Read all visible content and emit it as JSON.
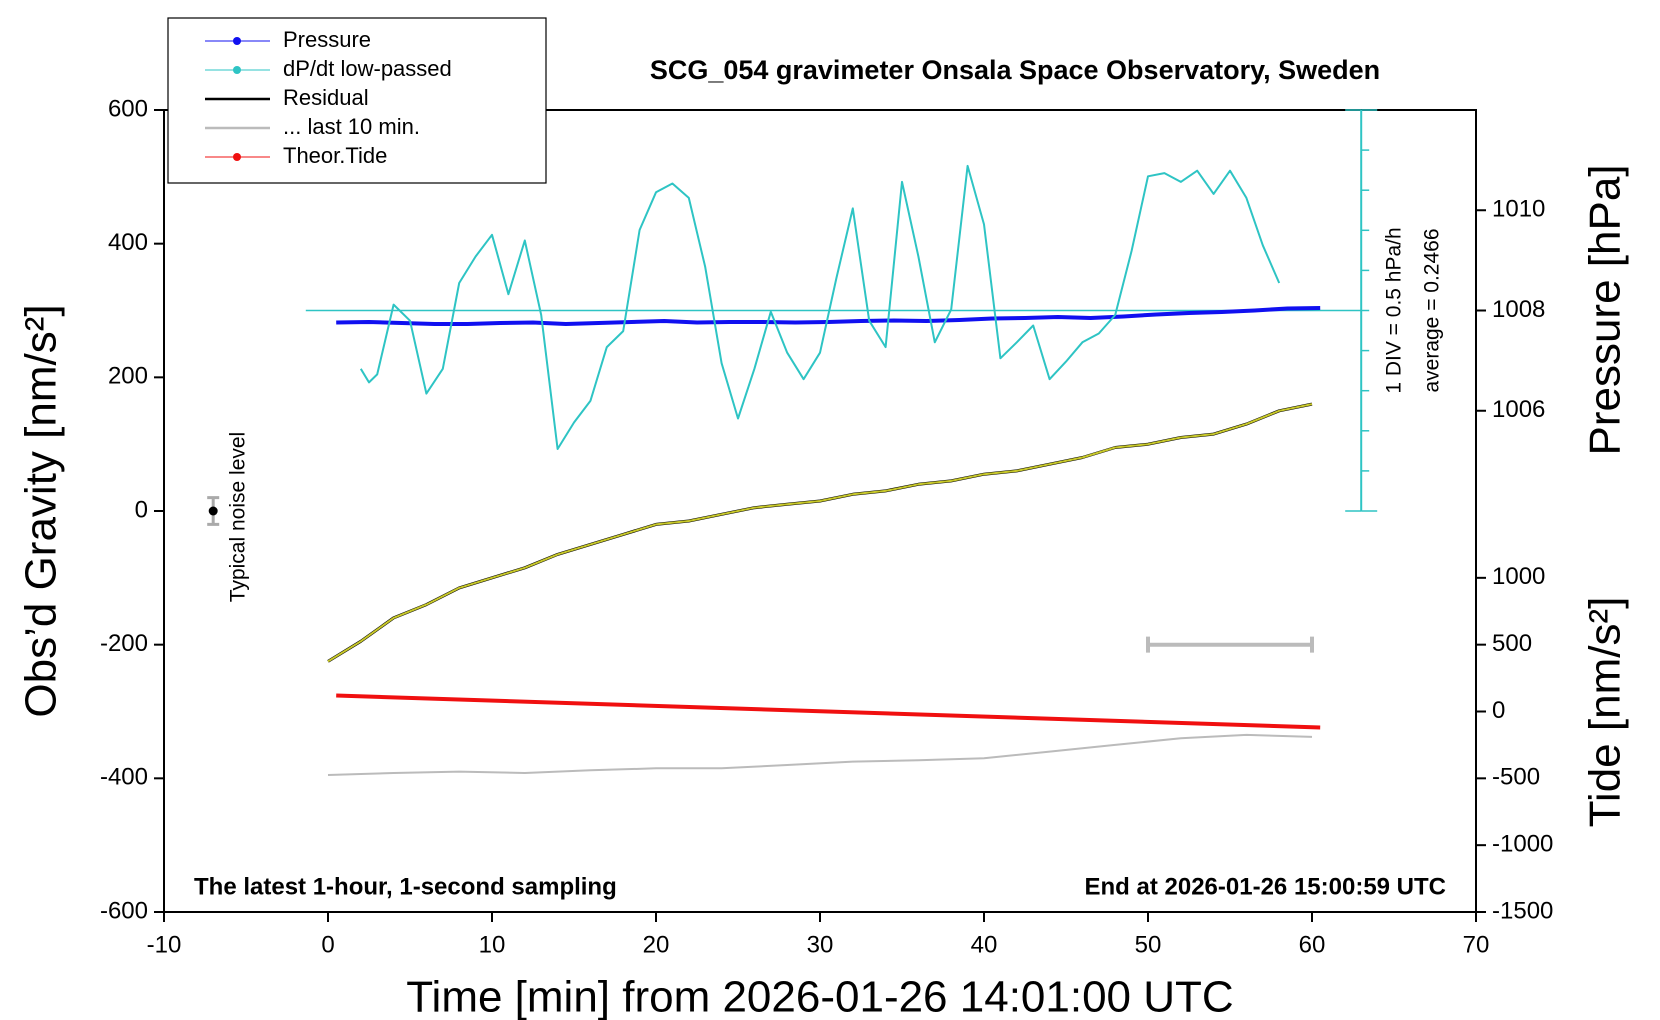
{
  "chart_data": {
    "type": "line",
    "title": "SCG_054 gravimeter Onsala Space Observatory, Sweden",
    "xlabel": "Time [min] from 2026-01-26 14:01:00 UTC",
    "ylabel": "Obs’d Gravity [nm/s²]",
    "note_left": "The latest 1-hour, 1-second sampling",
    "note_right": "End at 2026-01-26 15:00:59 UTC",
    "legend": "upper left",
    "xlim": [
      -10,
      70
    ],
    "xticks": [
      -10,
      0,
      10,
      20,
      30,
      40,
      50,
      60,
      70
    ],
    "ylim": [
      -600,
      600
    ],
    "yticks": [
      -600,
      -400,
      -200,
      0,
      200,
      400,
      600
    ],
    "pressure_axis": {
      "label": "Pressure [hPa]",
      "ylim": [
        1004,
        1012
      ],
      "yticks": [
        1006,
        1008,
        1010
      ]
    },
    "tide_axis": {
      "label": "Tide [nm/s²]",
      "ylim": [
        -1500,
        1500
      ],
      "yticks": [
        -1500,
        -1000,
        -500,
        0,
        500,
        1000
      ]
    },
    "dpdt_axis": {
      "x": 63,
      "color": "#2ec4c4",
      "div": {
        "value": 0.5,
        "label": "1 DIV = 0.5 hPa/h"
      },
      "average": {
        "value": 0.2466,
        "label": "average = 0.2466"
      }
    },
    "noise": {
      "label": "Typical noise level",
      "x": -7,
      "value": 0,
      "error": 20
    },
    "series": [
      {
        "name": "Pressure",
        "color": "#1010f0",
        "axis": "pressure",
        "marker": true,
        "width": 4,
        "x": [
          0.5,
          2.5,
          4.5,
          6.5,
          8.5,
          10.5,
          12.5,
          14.5,
          16.5,
          18.5,
          20.5,
          22.5,
          24.5,
          26.5,
          28.5,
          30.5,
          32.5,
          34.5,
          36.5,
          38.5,
          40.5,
          42.5,
          44.5,
          46.5,
          48.5,
          50.5,
          52.5,
          54.5,
          56.5,
          58.5,
          60.5
        ],
        "values": [
          1007.76,
          1007.77,
          1007.75,
          1007.73,
          1007.73,
          1007.75,
          1007.76,
          1007.73,
          1007.75,
          1007.77,
          1007.79,
          1007.76,
          1007.77,
          1007.77,
          1007.76,
          1007.77,
          1007.79,
          1007.8,
          1007.79,
          1007.81,
          1007.84,
          1007.85,
          1007.87,
          1007.85,
          1007.88,
          1007.92,
          1007.95,
          1007.97,
          1008.0,
          1008.04,
          1008.05
        ]
      },
      {
        "name": "dP/dt low-passed",
        "color": "#2ec4c4",
        "axis": "dpdt",
        "marker": true,
        "width": 2,
        "x": [
          2,
          2.5,
          3,
          4,
          5,
          6,
          7,
          8,
          9,
          10,
          11,
          12,
          13,
          14,
          15,
          16,
          17,
          18,
          19,
          20,
          21,
          22,
          23,
          24,
          25,
          26,
          27,
          28,
          29,
          30,
          31,
          32,
          33,
          34,
          35,
          36,
          37,
          38,
          39,
          40,
          41,
          42,
          43,
          44,
          45,
          46,
          47,
          48,
          49,
          50,
          51,
          52,
          53,
          54,
          55,
          56,
          57,
          58
        ],
        "values": [
          -0.48,
          -0.65,
          -0.55,
          0.32,
          0.12,
          -0.79,
          -0.48,
          0.59,
          0.92,
          1.19,
          0.45,
          1.12,
          0.19,
          -1.48,
          -1.15,
          -0.88,
          -0.21,
          -0.01,
          1.25,
          1.72,
          1.83,
          1.65,
          0.79,
          -0.41,
          -1.1,
          -0.48,
          0.23,
          -0.28,
          -0.61,
          -0.28,
          0.65,
          1.52,
          0.12,
          -0.21,
          1.85,
          0.92,
          -0.15,
          0.26,
          2.05,
          1.32,
          -0.35,
          -0.15,
          0.06,
          -0.61,
          -0.39,
          -0.15,
          -0.04,
          0.19,
          0.99,
          1.92,
          1.96,
          1.85,
          1.99,
          1.7,
          1.99,
          1.65,
          1.06,
          0.59
        ]
      },
      {
        "name": "Residual",
        "color": "#000000",
        "overlay_color": "#c8c82a",
        "width": 3,
        "x": [
          0,
          2,
          4,
          6,
          8,
          10,
          12,
          14,
          16,
          18,
          20,
          22,
          24,
          26,
          28,
          30,
          32,
          34,
          36,
          38,
          40,
          42,
          44,
          46,
          48,
          50,
          52,
          54,
          56,
          58,
          60
        ],
        "values": [
          -225,
          -195,
          -160,
          -140,
          -115,
          -100,
          -85,
          -65,
          -50,
          -35,
          -20,
          -15,
          -5,
          5,
          10,
          15,
          25,
          30,
          40,
          45,
          55,
          60,
          70,
          80,
          95,
          100,
          110,
          115,
          130,
          150,
          160
        ]
      },
      {
        "name": "... last 10 min.",
        "color": "#bbbbbb",
        "style": "range",
        "width": 4,
        "x": [
          50,
          60
        ],
        "values": [
          -200,
          -200
        ]
      },
      {
        "name": "Theor.Tide",
        "color": "#f01010",
        "axis": "tide",
        "marker": true,
        "width": 4,
        "x": [
          0.5,
          60.5
        ],
        "values": [
          120,
          -120
        ]
      },
      {
        "color": "#bbbbbb",
        "width": 2,
        "x": [
          0,
          4,
          8,
          12,
          16,
          20,
          24,
          28,
          32,
          36,
          40,
          44,
          48,
          52,
          56,
          60
        ],
        "values": [
          -395,
          -392,
          -390,
          -392,
          -388,
          -385,
          -385,
          -380,
          -375,
          -373,
          -370,
          -360,
          -350,
          -340,
          -335,
          -338
        ]
      }
    ]
  }
}
